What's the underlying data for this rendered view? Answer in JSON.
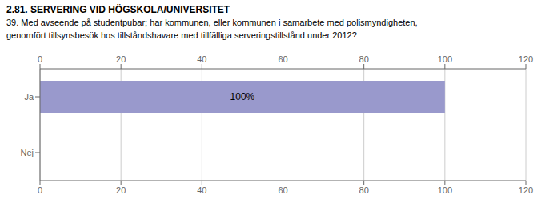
{
  "chart_data": {
    "type": "bar",
    "orientation": "horizontal",
    "title": "2.81. SERVERING VID HÖGSKOLA/UNIVERSITET",
    "subtitle": "39. Med avseende på studentpubar; har kommunen, eller kommunen i samarbete med polismyndigheten,\ngenomfört tillsynsbesök hos tillståndshavare med tillfälliga serveringstillstånd under 2012?",
    "categories": [
      "Ja",
      "Nej"
    ],
    "values": [
      100,
      0
    ],
    "value_labels": [
      "100%",
      null
    ],
    "data_labels": true,
    "color": "#9999cc",
    "xlim": [
      0,
      120
    ],
    "xticks": [
      0,
      20,
      40,
      60,
      80,
      100,
      120
    ],
    "grid": true
  }
}
